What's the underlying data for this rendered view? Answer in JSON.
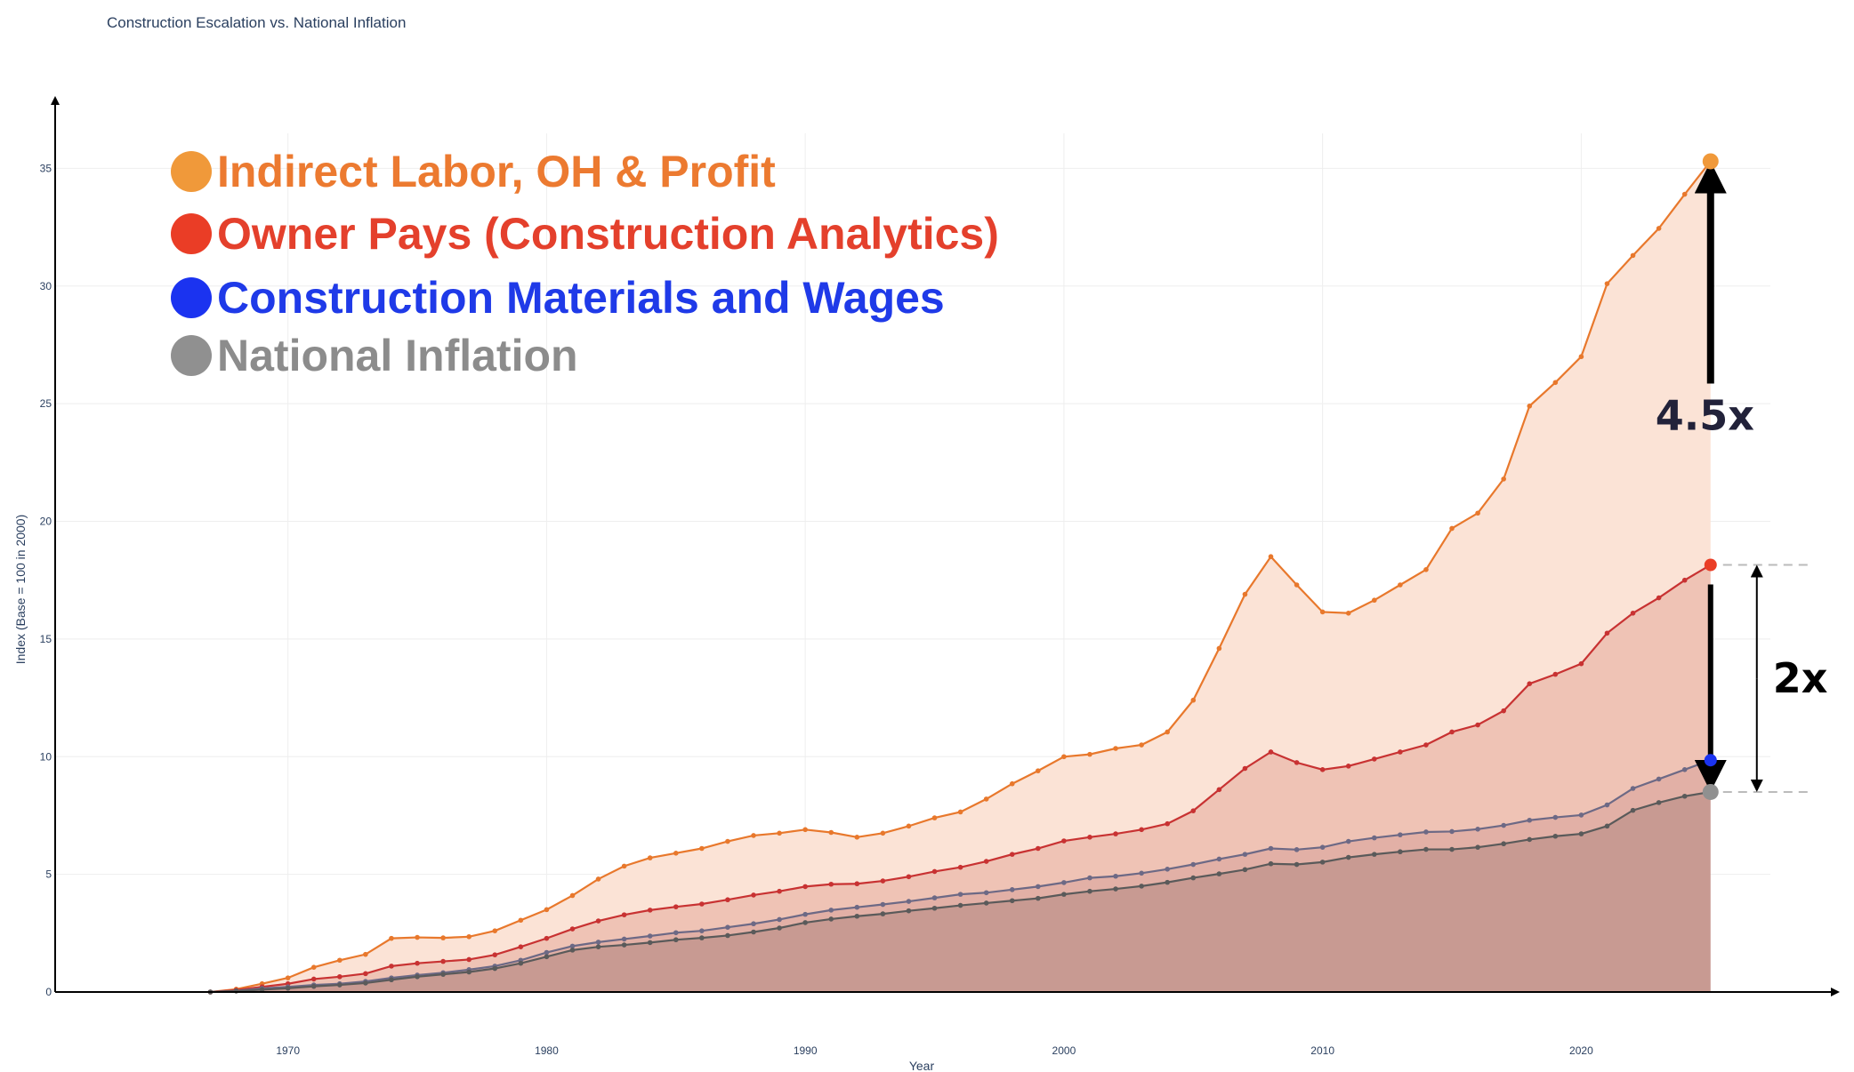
{
  "chart_data": {
    "type": "area",
    "title": "Construction Escalation vs. National Inflation",
    "xlabel": "Year",
    "ylabel": "Index (Base = 100 in 2000)",
    "xlim": [
      1961,
      2028
    ],
    "ylim": [
      0,
      38
    ],
    "xticks": [
      1970,
      1980,
      1990,
      2000,
      2010,
      2020
    ],
    "yticks": [
      0,
      5,
      10,
      15,
      20,
      25,
      30,
      35
    ],
    "grid": true,
    "legend_position": "top-left",
    "x": [
      1967,
      1968,
      1969,
      1970,
      1971,
      1972,
      1973,
      1974,
      1975,
      1976,
      1977,
      1978,
      1979,
      1980,
      1981,
      1982,
      1983,
      1984,
      1985,
      1986,
      1987,
      1988,
      1989,
      1990,
      1991,
      1992,
      1993,
      1994,
      1995,
      1996,
      1997,
      1998,
      1999,
      2000,
      2001,
      2002,
      2003,
      2004,
      2005,
      2006,
      2007,
      2008,
      2009,
      2010,
      2011,
      2012,
      2013,
      2014,
      2015,
      2016,
      2017,
      2018,
      2019,
      2020,
      2021,
      2022,
      2023,
      2024,
      2025
    ],
    "series": [
      {
        "name": "Indirect Labor, OH & Profit",
        "color": "#e8782c",
        "fill": "#fbe3d6",
        "legend_dot": "#f0993a",
        "legend_text_color": "#ec7a30",
        "values": [
          0.0,
          0.12,
          0.35,
          0.6,
          1.05,
          1.35,
          1.6,
          2.28,
          2.32,
          2.3,
          2.35,
          2.6,
          3.05,
          3.5,
          4.1,
          4.8,
          5.35,
          5.7,
          5.9,
          6.1,
          6.4,
          6.65,
          6.75,
          6.9,
          6.78,
          6.58,
          6.75,
          7.05,
          7.4,
          7.65,
          8.2,
          8.85,
          9.4,
          10.0,
          10.1,
          10.35,
          10.5,
          11.05,
          12.4,
          14.6,
          16.9,
          18.5,
          17.3,
          16.15,
          16.1,
          16.65,
          17.3,
          17.95,
          19.7,
          20.35,
          21.8,
          24.9,
          25.9,
          27.0,
          30.1,
          31.3,
          32.45,
          33.9,
          35.3
        ]
      },
      {
        "name": "Owner Pays (Construction Analytics)",
        "color": "#c83232",
        "fill": "#efc3b5",
        "legend_dot": "#ea3d26",
        "legend_text_color": "#e4402c",
        "values": [
          0.0,
          0.08,
          0.22,
          0.35,
          0.55,
          0.65,
          0.78,
          1.1,
          1.22,
          1.3,
          1.38,
          1.58,
          1.92,
          2.28,
          2.68,
          3.02,
          3.28,
          3.48,
          3.62,
          3.74,
          3.92,
          4.12,
          4.28,
          4.48,
          4.58,
          4.6,
          4.72,
          4.9,
          5.12,
          5.3,
          5.55,
          5.85,
          6.1,
          6.42,
          6.58,
          6.72,
          6.9,
          7.15,
          7.7,
          8.6,
          9.5,
          10.2,
          9.75,
          9.45,
          9.6,
          9.9,
          10.2,
          10.5,
          11.05,
          11.35,
          11.95,
          13.1,
          13.5,
          13.95,
          15.25,
          16.1,
          16.75,
          17.5,
          18.15
        ]
      },
      {
        "name": "Construction Materials and Wages",
        "color": "#6d6985",
        "fill": "#e2b0a6",
        "legend_dot": "#1b33f0",
        "legend_text_color": "#1f3ae8",
        "values": [
          0.0,
          0.05,
          0.15,
          0.22,
          0.3,
          0.35,
          0.45,
          0.6,
          0.72,
          0.82,
          0.95,
          1.1,
          1.35,
          1.68,
          1.95,
          2.12,
          2.25,
          2.38,
          2.52,
          2.6,
          2.75,
          2.9,
          3.08,
          3.3,
          3.48,
          3.6,
          3.72,
          3.85,
          4.0,
          4.15,
          4.22,
          4.35,
          4.48,
          4.65,
          4.85,
          4.92,
          5.05,
          5.22,
          5.42,
          5.65,
          5.85,
          6.1,
          6.05,
          6.15,
          6.4,
          6.55,
          6.68,
          6.8,
          6.82,
          6.92,
          7.08,
          7.3,
          7.42,
          7.52,
          7.95,
          8.65,
          9.05,
          9.45,
          9.85
        ]
      },
      {
        "name": "National Inflation",
        "color": "#5a5a5a",
        "fill": "#c89a92",
        "legend_dot": "#909090",
        "legend_text_color": "#8c8c8c",
        "values": [
          0.0,
          0.04,
          0.1,
          0.16,
          0.24,
          0.3,
          0.38,
          0.52,
          0.65,
          0.75,
          0.85,
          1.0,
          1.22,
          1.5,
          1.78,
          1.92,
          2.0,
          2.1,
          2.22,
          2.3,
          2.4,
          2.55,
          2.72,
          2.95,
          3.1,
          3.22,
          3.32,
          3.45,
          3.56,
          3.68,
          3.78,
          3.88,
          3.98,
          4.15,
          4.28,
          4.38,
          4.5,
          4.66,
          4.85,
          5.02,
          5.2,
          5.45,
          5.42,
          5.52,
          5.72,
          5.85,
          5.96,
          6.06,
          6.06,
          6.15,
          6.3,
          6.48,
          6.62,
          6.72,
          7.05,
          7.72,
          8.05,
          8.32,
          8.5
        ]
      }
    ],
    "annotations": [
      {
        "label": "4.5x",
        "from": "National Inflation",
        "to": "Indirect Labor, OH & Profit",
        "color": "#22223a"
      },
      {
        "label": "2x",
        "from": "National Inflation",
        "to": "Owner Pays (Construction Analytics)",
        "color": "#000000"
      }
    ]
  }
}
